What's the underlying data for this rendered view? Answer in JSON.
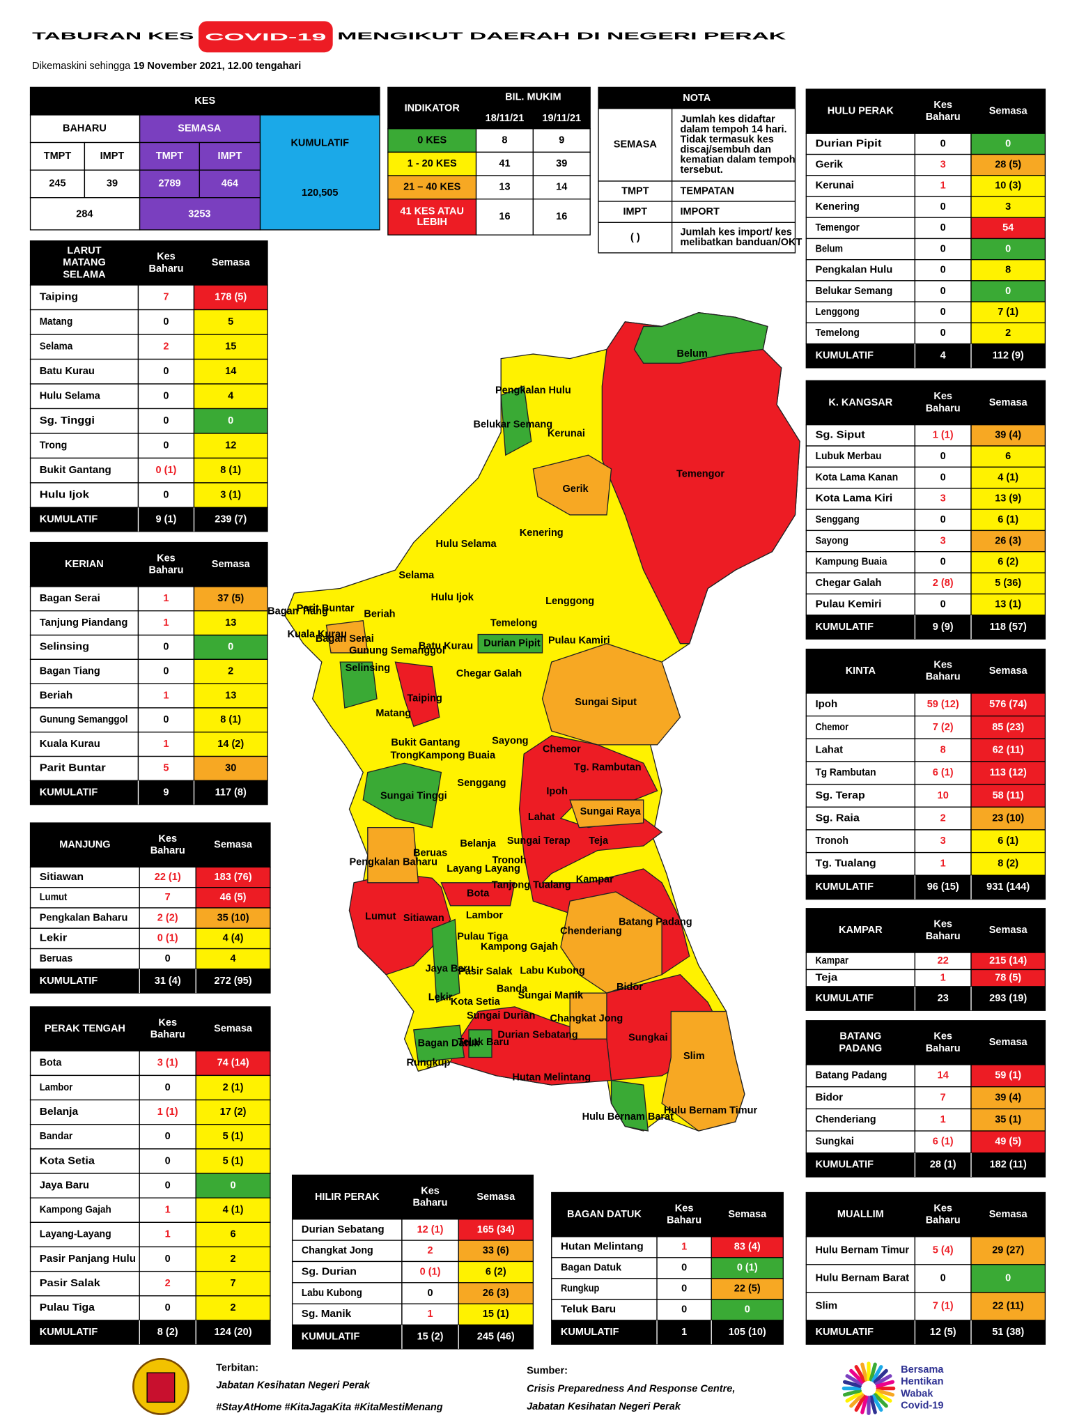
{
  "header": {
    "title_start": "TABURAN KES",
    "title_highlight": "COVID-19",
    "title_end": "MENGIKUT DAERAH DI NEGERI PERAK",
    "subtitle_prefix": "Dikemaskini sehingga",
    "subtitle_date": "19 November 2021, 12.00 tengahari"
  },
  "summary": {
    "kes": "KES",
    "baharu": "BAHARU",
    "semasa": "SEMASA",
    "kumulatif_label": "KUMULATIF",
    "tmpt": "TMPT",
    "impt": "IMPT",
    "baharu_tmpt": "245",
    "baharu_impt": "39",
    "semasa_tmpt": "2789",
    "semasa_impt": "464",
    "baharu_total": "284",
    "semasa_total": "3253",
    "kumulatif": "120,505"
  },
  "indikator": {
    "title": "INDIKATOR",
    "bil": "BIL. MUKIM",
    "dates": [
      "18/11/21",
      "19/11/21"
    ],
    "rows": [
      {
        "label": [
          "0 KES"
        ],
        "color": "#3aaa35",
        "values": [
          "8",
          "9"
        ]
      },
      {
        "label": [
          "1 - 20 KES"
        ],
        "color": "#fff200",
        "values": [
          "41",
          "39"
        ]
      },
      {
        "label": [
          "21 – 40 KES"
        ],
        "color": "#f7a823",
        "values": [
          "13",
          "14"
        ]
      },
      {
        "label": [
          "41 KES ATAU",
          "LEBIH"
        ],
        "color": "#ed1c24",
        "values": [
          "16",
          "16"
        ]
      }
    ]
  },
  "nota": {
    "title": "NOTA",
    "rows": [
      {
        "term": "SEMASA",
        "desc": [
          "Jumlah kes didaftar",
          "dalam tempoh 14 hari.",
          "Tidak termasuk kes",
          "discaj/sembuh dan",
          "kematian dalam tempoh",
          "tersebut."
        ]
      },
      {
        "term": "TMPT",
        "desc": [
          "TEMPATAN"
        ]
      },
      {
        "term": "IMPT",
        "desc": [
          "IMPORT"
        ]
      },
      {
        "term": "(     )",
        "desc": [
          "Jumlah kes import/ kes",
          "melibatkan banduan/OKT"
        ]
      }
    ]
  },
  "labels": {
    "kes_baharu": [
      "Kes",
      "Baharu"
    ],
    "semasa": "Semasa",
    "kumulatif": "KUMULATIF"
  },
  "districts": [
    {
      "title": [
        "LARUT",
        "MATANG",
        "SELAMA"
      ],
      "rows": [
        {
          "name": "Taiping",
          "baharu": "7",
          "semasa": "178 (5)",
          "color": "#ed1c24"
        },
        {
          "name": "Matang",
          "baharu": "0",
          "semasa": "5",
          "color": "#fff200"
        },
        {
          "name": "Selama",
          "baharu": "2",
          "semasa": "15",
          "color": "#fff200"
        },
        {
          "name": "Batu Kurau",
          "baharu": "0",
          "semasa": "14",
          "color": "#fff200"
        },
        {
          "name": "Hulu Selama",
          "baharu": "0",
          "semasa": "4",
          "color": "#fff200"
        },
        {
          "name": "Sg. Tinggi",
          "baharu": "0",
          "semasa": "0",
          "color": "#3aaa35"
        },
        {
          "name": "Trong",
          "baharu": "0",
          "semasa": "12",
          "color": "#fff200"
        },
        {
          "name": "Bukit Gantang",
          "baharu": "0 (1)",
          "semasa": "8 (1)",
          "color": "#fff200"
        },
        {
          "name": "Hulu Ijok",
          "baharu": "0",
          "semasa": "3 (1)",
          "color": "#fff200"
        }
      ],
      "total": {
        "baharu": "9 (1)",
        "semasa": "239 (7)"
      }
    },
    {
      "title": [
        "KERIAN"
      ],
      "rows": [
        {
          "name": "Bagan Serai",
          "baharu": "1",
          "semasa": "37 (5)",
          "color": "#f7a823"
        },
        {
          "name": "Tanjung Piandang",
          "baharu": "1",
          "semasa": "13",
          "color": "#fff200"
        },
        {
          "name": "Selinsing",
          "baharu": "0",
          "semasa": "0",
          "color": "#3aaa35"
        },
        {
          "name": "Bagan Tiang",
          "baharu": "0",
          "semasa": "2",
          "color": "#fff200"
        },
        {
          "name": "Beriah",
          "baharu": "1",
          "semasa": "13",
          "color": "#fff200"
        },
        {
          "name": "Gunung Semanggol",
          "baharu": "0",
          "semasa": "8 (1)",
          "color": "#fff200"
        },
        {
          "name": "Kuala Kurau",
          "baharu": "1",
          "semasa": "14 (2)",
          "color": "#fff200"
        },
        {
          "name": "Parit Buntar",
          "baharu": "5",
          "semasa": "30",
          "color": "#f7a823"
        }
      ],
      "total": {
        "baharu": "9",
        "semasa": "117 (8)"
      }
    },
    {
      "title": [
        "MANJUNG"
      ],
      "rows": [
        {
          "name": "Sitiawan",
          "baharu": "22 (1)",
          "semasa": "183 (76)",
          "color": "#ed1c24"
        },
        {
          "name": "Lumut",
          "baharu": "7",
          "semasa": "46 (5)",
          "color": "#ed1c24"
        },
        {
          "name": "Pengkalan Baharu",
          "baharu": "2 (2)",
          "semasa": "35 (10)",
          "color": "#f7a823"
        },
        {
          "name": "Lekir",
          "baharu": "0 (1)",
          "semasa": "4 (4)",
          "color": "#fff200"
        },
        {
          "name": "Beruas",
          "baharu": "0",
          "semasa": "4",
          "color": "#fff200"
        }
      ],
      "total": {
        "baharu": "31 (4)",
        "semasa": "272 (95)"
      }
    },
    {
      "title": [
        "PERAK TENGAH"
      ],
      "rows": [
        {
          "name": "Bota",
          "baharu": "3 (1)",
          "semasa": "74 (14)",
          "color": "#ed1c24"
        },
        {
          "name": "Lambor",
          "baharu": "0",
          "semasa": "2 (1)",
          "color": "#fff200"
        },
        {
          "name": "Belanja",
          "baharu": "1 (1)",
          "semasa": "17 (2)",
          "color": "#fff200"
        },
        {
          "name": "Bandar",
          "baharu": "0",
          "semasa": "5 (1)",
          "color": "#fff200"
        },
        {
          "name": "Kota Setia",
          "baharu": "0",
          "semasa": "5 (1)",
          "color": "#fff200"
        },
        {
          "name": "Jaya Baru",
          "baharu": "0",
          "semasa": "0",
          "color": "#3aaa35"
        },
        {
          "name": "Kampong Gajah",
          "baharu": "1",
          "semasa": "4 (1)",
          "color": "#fff200"
        },
        {
          "name": "Layang-Layang",
          "baharu": "1",
          "semasa": "6",
          "color": "#fff200"
        },
        {
          "name": "Pasir Panjang Hulu",
          "baharu": "0",
          "semasa": "2",
          "color": "#fff200"
        },
        {
          "name": "Pasir Salak",
          "baharu": "2",
          "semasa": "7",
          "color": "#fff200"
        },
        {
          "name": "Pulau Tiga",
          "baharu": "0",
          "semasa": "2",
          "color": "#fff200"
        }
      ],
      "total": {
        "baharu": "8 (2)",
        "semasa": "124 (20)"
      }
    },
    {
      "title": [
        "HILIR PERAK"
      ],
      "rows": [
        {
          "name": "Durian Sebatang",
          "baharu": "12 (1)",
          "semasa": "165 (34)",
          "color": "#ed1c24"
        },
        {
          "name": "Changkat Jong",
          "baharu": "2",
          "semasa": "33 (6)",
          "color": "#f7a823"
        },
        {
          "name": "Sg. Durian",
          "baharu": "0 (1)",
          "semasa": "6 (2)",
          "color": "#fff200"
        },
        {
          "name": "Labu Kubong",
          "baharu": "0",
          "semasa": "26 (3)",
          "color": "#f7a823"
        },
        {
          "name": "Sg. Manik",
          "baharu": "1",
          "semasa": "15 (1)",
          "color": "#fff200"
        }
      ],
      "total": {
        "baharu": "15 (2)",
        "semasa": "245 (46)"
      }
    },
    {
      "title": [
        "BAGAN DATUK"
      ],
      "rows": [
        {
          "name": "Hutan Melintang",
          "baharu": "1",
          "semasa": "83 (4)",
          "color": "#ed1c24"
        },
        {
          "name": "Bagan Datuk",
          "baharu": "0",
          "semasa": "0 (1)",
          "color": "#3aaa35"
        },
        {
          "name": "Rungkup",
          "baharu": "0",
          "semasa": "22 (5)",
          "color": "#f7a823"
        },
        {
          "name": "Teluk Baru",
          "baharu": "0",
          "semasa": "0",
          "color": "#3aaa35"
        }
      ],
      "total": {
        "baharu": "1",
        "semasa": "105 (10)"
      }
    },
    {
      "title": [
        "HULU PERAK"
      ],
      "rows": [
        {
          "name": "Durian Pipit",
          "baharu": "0",
          "semasa": "0",
          "color": "#3aaa35"
        },
        {
          "name": "Gerik",
          "baharu": "3",
          "semasa": "28 (5)",
          "color": "#f7a823"
        },
        {
          "name": "Kerunai",
          "baharu": "1",
          "semasa": "10 (3)",
          "color": "#fff200"
        },
        {
          "name": "Kenering",
          "baharu": "0",
          "semasa": "3",
          "color": "#fff200"
        },
        {
          "name": "Temengor",
          "baharu": "0",
          "semasa": "54",
          "color": "#ed1c24"
        },
        {
          "name": "Belum",
          "baharu": "0",
          "semasa": "0",
          "color": "#3aaa35"
        },
        {
          "name": "Pengkalan Hulu",
          "baharu": "0",
          "semasa": "8",
          "color": "#fff200"
        },
        {
          "name": "Belukar Semang",
          "baharu": "0",
          "semasa": "0",
          "color": "#3aaa35"
        },
        {
          "name": "Lenggong",
          "baharu": "0",
          "semasa": "7 (1)",
          "color": "#fff200"
        },
        {
          "name": "Temelong",
          "baharu": "0",
          "semasa": "2",
          "color": "#fff200"
        }
      ],
      "total": {
        "baharu": "4",
        "semasa": "112 (9)"
      }
    },
    {
      "title": [
        "K. KANGSAR"
      ],
      "rows": [
        {
          "name": "Sg. Siput",
          "baharu": "1 (1)",
          "semasa": "39 (4)",
          "color": "#f7a823"
        },
        {
          "name": "Lubuk Merbau",
          "baharu": "0",
          "semasa": "6",
          "color": "#fff200"
        },
        {
          "name": "Kota Lama Kanan",
          "baharu": "0",
          "semasa": "4 (1)",
          "color": "#fff200"
        },
        {
          "name": "Kota Lama Kiri",
          "baharu": "3",
          "semasa": "13 (9)",
          "color": "#fff200"
        },
        {
          "name": "Senggang",
          "baharu": "0",
          "semasa": "6 (1)",
          "color": "#fff200"
        },
        {
          "name": "Sayong",
          "baharu": "3",
          "semasa": "26 (3)",
          "color": "#f7a823"
        },
        {
          "name": "Kampung Buaia",
          "baharu": "0",
          "semasa": "6 (2)",
          "color": "#fff200"
        },
        {
          "name": "Chegar Galah",
          "baharu": "2 (8)",
          "semasa": "5 (36)",
          "color": "#fff200"
        },
        {
          "name": "Pulau Kemiri",
          "baharu": "0",
          "semasa": "13 (1)",
          "color": "#fff200"
        }
      ],
      "total": {
        "baharu": "9 (9)",
        "semasa": "118 (57)"
      }
    },
    {
      "title": [
        "KINTA"
      ],
      "rows": [
        {
          "name": "Ipoh",
          "baharu": "59 (12)",
          "semasa": "576 (74)",
          "color": "#ed1c24"
        },
        {
          "name": "Chemor",
          "baharu": "7 (2)",
          "semasa": "85 (23)",
          "color": "#ed1c24"
        },
        {
          "name": "Lahat",
          "baharu": "8",
          "semasa": "62 (11)",
          "color": "#ed1c24"
        },
        {
          "name": "Tg Rambutan",
          "baharu": "6 (1)",
          "semasa": "113 (12)",
          "color": "#ed1c24"
        },
        {
          "name": "Sg. Terap",
          "baharu": "10",
          "semasa": "58 (11)",
          "color": "#ed1c24"
        },
        {
          "name": "Sg. Raia",
          "baharu": "2",
          "semasa": "23 (10)",
          "color": "#f7a823"
        },
        {
          "name": "Tronoh",
          "baharu": "3",
          "semasa": "6 (1)",
          "color": "#fff200"
        },
        {
          "name": "Tg. Tualang",
          "baharu": "1",
          "semasa": "8 (2)",
          "color": "#fff200"
        }
      ],
      "total": {
        "baharu": "96 (15)",
        "semasa": "931 (144)"
      }
    },
    {
      "title": [
        "KAMPAR"
      ],
      "rows": [
        {
          "name": "Kampar",
          "baharu": "22",
          "semasa": "215 (14)",
          "color": "#ed1c24"
        },
        {
          "name": "Teja",
          "baharu": "1",
          "semasa": "78 (5)",
          "color": "#ed1c24"
        }
      ],
      "total": {
        "baharu": "23",
        "semasa": "293 (19)"
      }
    },
    {
      "title": [
        "BATANG",
        "PADANG"
      ],
      "rows": [
        {
          "name": "Batang Padang",
          "baharu": "14",
          "semasa": "59 (1)",
          "color": "#ed1c24"
        },
        {
          "name": "Bidor",
          "baharu": "7",
          "semasa": "39 (4)",
          "color": "#f7a823"
        },
        {
          "name": "Chenderiang",
          "baharu": "1",
          "semasa": "35 (1)",
          "color": "#f7a823"
        },
        {
          "name": "Sungkai",
          "baharu": "6 (1)",
          "semasa": "49 (5)",
          "color": "#ed1c24"
        }
      ],
      "total": {
        "baharu": "28 (1)",
        "semasa": "182 (11)"
      }
    },
    {
      "title": [
        "MUALLIM"
      ],
      "rows": [
        {
          "name": "Hulu Bernam Timur",
          "baharu": "5 (4)",
          "semasa": "29 (27)",
          "color": "#f7a823"
        },
        {
          "name": "Hulu Bernam Barat",
          "baharu": "0",
          "semasa": "0",
          "color": "#3aaa35"
        },
        {
          "name": "Slim",
          "baharu": "7 (1)",
          "semasa": "22 (11)",
          "color": "#f7a823"
        }
      ],
      "total": {
        "baharu": "12 (5)",
        "semasa": "51 (38)"
      }
    }
  ],
  "map_labels": [
    "Belum",
    "Pengkalan Hulu",
    "Belukar Semang",
    "Kerunai",
    "Temengor",
    "Gerik",
    "Kenering",
    "Hulu Selama",
    "Selama",
    "Hulu Ijok",
    "Lenggong",
    "Temelong",
    "Pulau Kamiri",
    "Durian Pipit",
    "Parit Buntar",
    "Bagan Tiang",
    "Kuala Kurau",
    "Bagan Serai",
    "Beriah",
    "Gunung Semanggol",
    "Batu Kurau",
    "Selinsing",
    "Chegar Galah",
    "Sungai Siput",
    "Taiping",
    "Matang",
    "Bukit Gantang",
    "Trong",
    "Kampong Buaia",
    "Sayong",
    "Chemor",
    "Tg. Rambutan",
    "Sungai Tinggi",
    "Senggang",
    "Ipoh",
    "Sungai Raya",
    "Lahat",
    "Sungai Terap",
    "Teja",
    "Belanja",
    "Beruas",
    "Pengkalan Baharu",
    "Tronoh",
    "Layang Layang",
    "Tanjong Tualang",
    "Kampar",
    "Bota",
    "Lumut",
    "Sitiawan",
    "Lambor",
    "Batang Padang",
    "Pulau Tiga",
    "Chenderiang",
    "Kampong Gajah",
    "Jaya Baru",
    "Pasir Salak",
    "Labu Kubong",
    "Bidor",
    "Banda",
    "Sungai Manik",
    "Lekir",
    "Kota Setia",
    "Sungai Durian",
    "Changkat Jong",
    "Sungkai",
    "Bagan Datuk",
    "Teluk Baru",
    "Durian Sebatang",
    "Slim",
    "Rungkup",
    "Hutan Melintang",
    "Hulu Bernam Barat",
    "Hulu Bernam Timur"
  ],
  "footer": {
    "terbitan_label": "Terbitan:",
    "terbitan": "Jabatan Kesihatan Negeri Perak",
    "hashtags": "#StayAtHome #KitaJagaKita #KitaMestiMenang",
    "sumber_label": "Sumber:",
    "sumber": [
      "Crisis Preparedness And Response Centre,",
      "Jabatan Kesihatan Negeri Perak"
    ],
    "logo": [
      "Bersama",
      "Hentikan",
      "Wabak",
      "Covid-19"
    ]
  }
}
